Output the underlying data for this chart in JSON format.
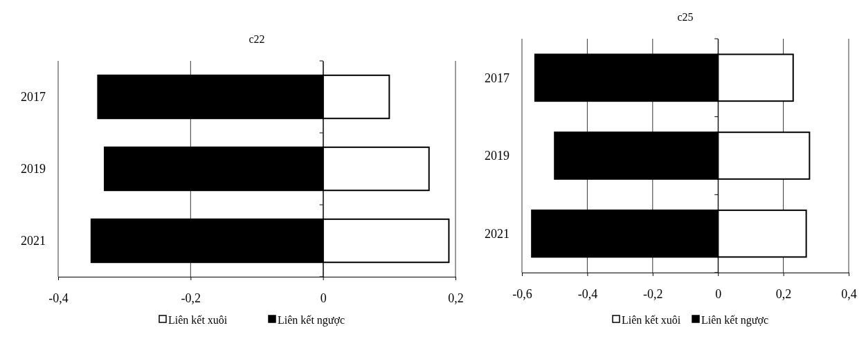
{
  "chart_data": [
    {
      "type": "bar",
      "title": "c22",
      "orientation": "horizontal",
      "stacked": true,
      "categories": [
        "2017",
        "2019",
        "2021"
      ],
      "series": [
        {
          "name": "Liên kết xuôi",
          "color": "#ffffff",
          "values": [
            0.1,
            0.16,
            0.19
          ]
        },
        {
          "name": "Liên kết ngược",
          "color": "#000000",
          "values": [
            -0.34,
            -0.33,
            -0.35
          ]
        }
      ],
      "xlim": [
        -0.4,
        0.2
      ],
      "xticks": [
        {
          "value": -0.4,
          "label": "-0,4"
        },
        {
          "value": -0.2,
          "label": "-0,2"
        },
        0,
        {
          "value": 0.2,
          "label": "0,2"
        }
      ],
      "grid": "x",
      "legend": "bottom"
    },
    {
      "type": "bar",
      "title": "c25",
      "orientation": "horizontal",
      "stacked": true,
      "categories": [
        "2017",
        "2019",
        "2021"
      ],
      "series": [
        {
          "name": "Liên kết xuôi",
          "color": "#ffffff",
          "values": [
            0.23,
            0.28,
            0.27
          ]
        },
        {
          "name": "Liên kết ngược",
          "color": "#000000",
          "values": [
            -0.56,
            -0.5,
            -0.57
          ]
        }
      ],
      "xlim": [
        -0.6,
        0.4
      ],
      "xticks": [
        {
          "value": -0.6,
          "label": "-0,6"
        },
        {
          "value": -0.4,
          "label": "-0,4"
        },
        {
          "value": -0.2,
          "label": "-0,2"
        },
        0,
        {
          "value": 0.2,
          "label": "0,2"
        },
        {
          "value": 0.4,
          "label": "0,4"
        }
      ],
      "grid": "x",
      "legend": "bottom"
    }
  ]
}
